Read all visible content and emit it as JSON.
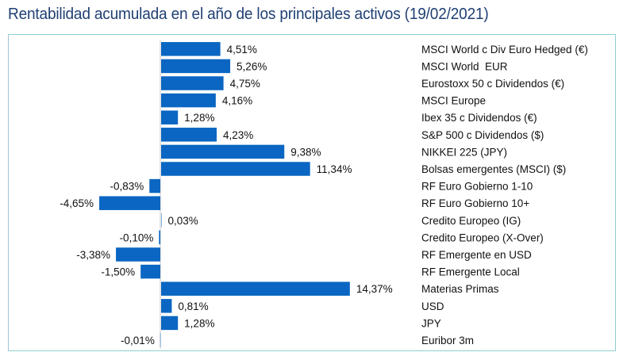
{
  "header": {
    "title": "Rentabilidad acumulada en el año de los principales activos (19/02/2021)"
  },
  "colors": {
    "bar": "#0a66c2",
    "title": "#1f3f73",
    "frame": "#8fd0cf",
    "axis": "#c8c8c8"
  },
  "chart_data": {
    "type": "bar",
    "orientation": "horizontal",
    "title": "Rentabilidad acumulada en el año de los principales activos (19/02/2021)",
    "xlabel": "",
    "ylabel": "",
    "unit": "%",
    "grid": false,
    "legend": "none",
    "categories": [
      "MSCI World c Div Euro Hedged (€)",
      "MSCI World  EUR",
      "Eurostoxx 50 c Dividendos (€)",
      "MSCI Europe",
      "Ibex 35 c Dividendos (€)",
      "S&P 500 c Dividendos ($)",
      "NIKKEI 225 (JPY)",
      "Bolsas emergentes (MSCI) ($)",
      "RF Euro Gobierno 1-10",
      "RF Euro Gobierno 10+",
      "Credito Europeo (IG)",
      "Credito Europeo (X-Over)",
      "RF Emergente en USD",
      "RF Emergente Local",
      "Materias Primas",
      "USD",
      "JPY",
      "Euribor 3m"
    ],
    "values": [
      4.51,
      5.26,
      4.75,
      4.16,
      1.28,
      4.23,
      9.38,
      11.34,
      -0.83,
      -4.65,
      0.03,
      -0.1,
      -3.38,
      -1.5,
      14.37,
      0.81,
      1.28,
      -0.01
    ],
    "data_labels": [
      "4,51%",
      "5,26%",
      "4,75%",
      "4,16%",
      "1,28%",
      "4,23%",
      "9,38%",
      "11,34%",
      "-0,83%",
      "-4,65%",
      "0,03%",
      "-0,10%",
      "-3,38%",
      "-1,50%",
      "14,37%",
      "0,81%",
      "1,28%",
      "-0,01%"
    ],
    "xlim": [
      -5,
      15
    ]
  }
}
